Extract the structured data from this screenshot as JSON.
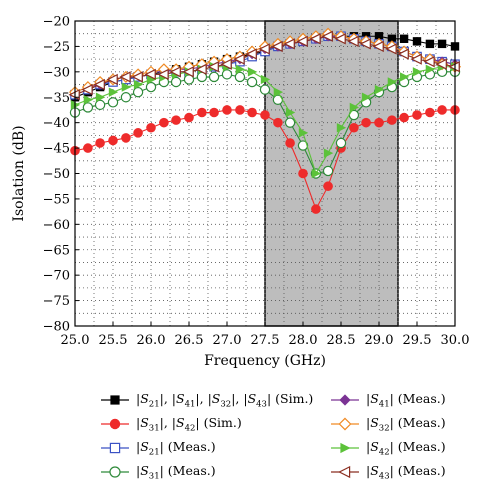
{
  "chart_data": {
    "type": "line",
    "xlabel": "Frequency (GHz)",
    "ylabel": "Isolation (dB)",
    "xlim": [
      25.0,
      30.0
    ],
    "ylim": [
      -80,
      -20
    ],
    "xticks": [
      25.0,
      25.5,
      26.0,
      26.5,
      27.0,
      27.5,
      28.0,
      28.5,
      29.0,
      29.5,
      30.0
    ],
    "xtick_labels": [
      "25.0",
      "25.5",
      "26.0",
      "26.5",
      "27.0",
      "27.5",
      "28.0",
      "28.5",
      "29.0",
      "29.5",
      "30.0"
    ],
    "yticks": [
      -20,
      -25,
      -30,
      -35,
      -40,
      -45,
      -50,
      -55,
      -60,
      -65,
      -70,
      -75,
      -80
    ],
    "ytick_labels": [
      "−20",
      "−25",
      "−30",
      "−35",
      "−40",
      "−45",
      "−50",
      "−55",
      "−60",
      "−65",
      "−70",
      "−75",
      "−80"
    ],
    "grid": "dotted",
    "shaded_band": {
      "x_from": 27.5,
      "x_to": 29.25,
      "color": "#bdbdbd"
    },
    "legend_position": "bottom",
    "series": [
      {
        "name": "|S21|, |S41|, |S32|, |S43| (Sim.)",
        "label_html": "|<i>S</i><sub>21</sub>|, |<i>S</i><sub>41</sub>|, |<i>S</i><sub>32</sub>|, |<i>S</i><sub>43</sub>| (Sim.)",
        "color": "#000000",
        "marker": "square-filled",
        "x": [
          25.0,
          25.17,
          25.33,
          25.5,
          25.67,
          25.83,
          26.0,
          26.17,
          26.33,
          26.5,
          26.67,
          26.83,
          27.0,
          27.17,
          27.33,
          27.5,
          27.67,
          27.83,
          28.0,
          28.17,
          28.33,
          28.5,
          28.67,
          28.83,
          29.0,
          29.17,
          29.33,
          29.5,
          29.67,
          29.83,
          30.0
        ],
        "y": [
          -35.0,
          -34.0,
          -33.0,
          -32.0,
          -31.5,
          -31.0,
          -30.5,
          -30.0,
          -29.5,
          -29.0,
          -28.5,
          -28.0,
          -27.5,
          -27.0,
          -26.5,
          -26.0,
          -25.0,
          -24.5,
          -24.0,
          -23.5,
          -23.0,
          -23.0,
          -23.0,
          -23.0,
          -23.0,
          -23.5,
          -23.5,
          -24.0,
          -24.5,
          -24.5,
          -25.0
        ]
      },
      {
        "name": "|S31|, |S42| (Sim.)",
        "label_html": "|<i>S</i><sub>31</sub>|, |<i>S</i><sub>42</sub>| (Sim.)",
        "color": "#ee2b2b",
        "marker": "circle-filled",
        "x": [
          25.0,
          25.17,
          25.33,
          25.5,
          25.67,
          25.83,
          26.0,
          26.17,
          26.33,
          26.5,
          26.67,
          26.83,
          27.0,
          27.17,
          27.33,
          27.5,
          27.67,
          27.83,
          28.0,
          28.17,
          28.33,
          28.5,
          28.67,
          28.83,
          29.0,
          29.17,
          29.33,
          29.5,
          29.67,
          29.83,
          30.0
        ],
        "y": [
          -45.5,
          -45.0,
          -44.0,
          -43.5,
          -43.0,
          -42.0,
          -41.0,
          -40.0,
          -39.5,
          -39.0,
          -38.0,
          -38.0,
          -37.5,
          -37.5,
          -38.0,
          -38.5,
          -40.0,
          -44.0,
          -50.0,
          -57.0,
          -52.5,
          -45.0,
          -41.0,
          -40.0,
          -40.0,
          -39.5,
          -39.0,
          -38.5,
          -38.0,
          -37.5,
          -37.5
        ]
      },
      {
        "name": "|S21| (Meas.)",
        "label_html": "|<i>S</i><sub>21</sub>| (Meas.)",
        "color": "#3a52c4",
        "marker": "square-open",
        "x": [
          25.0,
          25.17,
          25.33,
          25.5,
          25.67,
          25.83,
          26.0,
          26.17,
          26.33,
          26.5,
          26.67,
          26.83,
          27.0,
          27.17,
          27.33,
          27.5,
          27.67,
          27.83,
          28.0,
          28.17,
          28.33,
          28.5,
          28.67,
          28.83,
          29.0,
          29.17,
          29.33,
          29.5,
          29.67,
          29.83,
          30.0
        ],
        "y": [
          -34.5,
          -33.5,
          -32.5,
          -32.0,
          -31.5,
          -31.0,
          -30.5,
          -30.5,
          -30.0,
          -30.0,
          -29.5,
          -29.0,
          -28.5,
          -28.0,
          -27.0,
          -26.0,
          -25.0,
          -24.5,
          -24.0,
          -23.5,
          -23.0,
          -23.0,
          -23.5,
          -24.0,
          -24.5,
          -25.0,
          -26.0,
          -27.0,
          -27.5,
          -28.0,
          -28.5
        ]
      },
      {
        "name": "|S31| (Meas.)",
        "label_html": "|<i>S</i><sub>31</sub>| (Meas.)",
        "color": "#2f8a3a",
        "marker": "circle-open",
        "x": [
          25.0,
          25.17,
          25.33,
          25.5,
          25.67,
          25.83,
          26.0,
          26.17,
          26.33,
          26.5,
          26.67,
          26.83,
          27.0,
          27.17,
          27.33,
          27.5,
          27.67,
          27.83,
          28.0,
          28.17,
          28.33,
          28.5,
          28.67,
          28.83,
          29.0,
          29.17,
          29.33,
          29.5,
          29.67,
          29.83,
          30.0
        ],
        "y": [
          -38.0,
          -37.0,
          -36.5,
          -36.0,
          -35.0,
          -34.0,
          -33.0,
          -32.0,
          -32.0,
          -31.5,
          -31.0,
          -31.0,
          -30.5,
          -31.0,
          -32.0,
          -33.5,
          -35.5,
          -40.0,
          -44.5,
          -50.0,
          -49.5,
          -44.0,
          -38.5,
          -36.0,
          -34.0,
          -33.0,
          -32.0,
          -31.0,
          -30.5,
          -30.0,
          -30.0
        ]
      },
      {
        "name": "|S41| (Meas.)",
        "label_html": "|<i>S</i><sub>41</sub>| (Meas.)",
        "color": "#7b3394",
        "marker": "diamond-filled",
        "x": [
          25.0,
          25.17,
          25.33,
          25.5,
          25.67,
          25.83,
          26.0,
          26.17,
          26.33,
          26.5,
          26.67,
          26.83,
          27.0,
          27.17,
          27.33,
          27.5,
          27.67,
          27.83,
          28.0,
          28.17,
          28.33,
          28.5,
          28.67,
          28.83,
          29.0,
          29.17,
          29.33,
          29.5,
          29.67,
          29.83,
          30.0
        ],
        "y": [
          -34.0,
          -33.0,
          -32.5,
          -31.5,
          -31.0,
          -30.5,
          -30.0,
          -30.0,
          -29.5,
          -29.5,
          -29.0,
          -28.5,
          -28.0,
          -27.5,
          -26.5,
          -25.5,
          -25.0,
          -24.5,
          -24.0,
          -23.5,
          -23.0,
          -23.0,
          -23.5,
          -24.0,
          -24.5,
          -25.0,
          -26.0,
          -27.0,
          -27.5,
          -28.0,
          -28.5
        ]
      },
      {
        "name": "|S32| (Meas.)",
        "label_html": "|<i>S</i><sub>32</sub>| (Meas.)",
        "color": "#f08a24",
        "marker": "diamond-open",
        "x": [
          25.0,
          25.17,
          25.33,
          25.5,
          25.67,
          25.83,
          26.0,
          26.17,
          26.33,
          26.5,
          26.67,
          26.83,
          27.0,
          27.17,
          27.33,
          27.5,
          27.67,
          27.83,
          28.0,
          28.17,
          28.33,
          28.5,
          28.67,
          28.83,
          29.0,
          29.17,
          29.33,
          29.5,
          29.67,
          29.83,
          30.0
        ],
        "y": [
          -34.0,
          -33.0,
          -32.0,
          -31.5,
          -31.0,
          -30.5,
          -30.0,
          -29.5,
          -29.5,
          -29.0,
          -28.5,
          -28.0,
          -27.5,
          -27.0,
          -26.0,
          -25.0,
          -24.5,
          -24.0,
          -23.5,
          -23.0,
          -22.5,
          -23.0,
          -23.5,
          -24.0,
          -24.5,
          -25.0,
          -26.0,
          -27.0,
          -27.5,
          -28.5,
          -29.0
        ]
      },
      {
        "name": "|S42| (Meas.)",
        "label_html": "|<i>S</i><sub>42</sub>| (Meas.)",
        "color": "#5cc23a",
        "marker": "triangle-right-filled",
        "x": [
          25.0,
          25.17,
          25.33,
          25.5,
          25.67,
          25.83,
          26.0,
          26.17,
          26.33,
          26.5,
          26.67,
          26.83,
          27.0,
          27.17,
          27.33,
          27.5,
          27.67,
          27.83,
          28.0,
          28.17,
          28.33,
          28.5,
          28.67,
          28.83,
          29.0,
          29.17,
          29.33,
          29.5,
          29.67,
          29.83,
          30.0
        ],
        "y": [
          -36.5,
          -35.5,
          -35.0,
          -34.0,
          -33.0,
          -32.5,
          -31.5,
          -31.0,
          -30.5,
          -30.0,
          -29.5,
          -29.0,
          -29.0,
          -29.5,
          -30.0,
          -31.5,
          -34.0,
          -38.0,
          -42.0,
          -50.0,
          -46.0,
          -41.0,
          -37.0,
          -35.0,
          -33.5,
          -32.0,
          -31.0,
          -30.0,
          -29.5,
          -29.0,
          -29.0
        ]
      },
      {
        "name": "|S43| (Meas.)",
        "label_html": "|<i>S</i><sub>43</sub>| (Meas.)",
        "color": "#8b2f22",
        "marker": "triangle-left-open",
        "x": [
          25.0,
          25.17,
          25.33,
          25.5,
          25.67,
          25.83,
          26.0,
          26.17,
          26.33,
          26.5,
          26.67,
          26.83,
          27.0,
          27.17,
          27.33,
          27.5,
          27.67,
          27.83,
          28.0,
          28.17,
          28.33,
          28.5,
          28.67,
          28.83,
          29.0,
          29.17,
          29.33,
          29.5,
          29.67,
          29.83,
          30.0
        ],
        "y": [
          -34.5,
          -33.5,
          -32.5,
          -31.5,
          -31.0,
          -31.0,
          -30.5,
          -30.5,
          -30.0,
          -30.0,
          -29.5,
          -29.0,
          -28.5,
          -27.5,
          -26.5,
          -25.5,
          -25.0,
          -24.5,
          -24.0,
          -23.5,
          -23.0,
          -23.5,
          -24.0,
          -24.5,
          -25.0,
          -25.5,
          -26.5,
          -27.5,
          -28.0,
          -28.5,
          -29.0
        ]
      }
    ]
  }
}
